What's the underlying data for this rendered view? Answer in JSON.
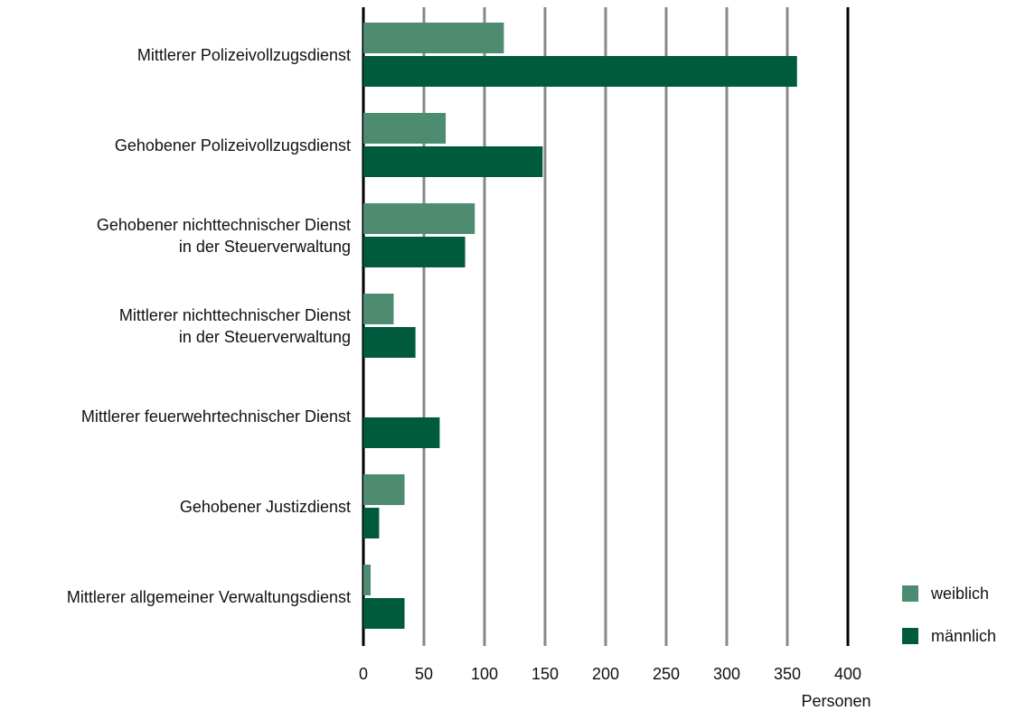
{
  "chart_data": {
    "type": "barh",
    "categories": [
      "Mittlerer Polizeivollzugsdienst",
      "Gehobener Polizeivollzugsdienst",
      "Gehobener nichttechnischer Dienst\nin der Steuerverwaltung",
      "Mittlerer nichttechnischer Dienst\nin der Steuerverwaltung",
      "Mittlerer feuerwehrtechnischer Dienst",
      "Gehobener Justizdienst",
      "Mittlerer allgemeiner Verwaltungsdienst"
    ],
    "series": [
      {
        "name": "weiblich",
        "color": "#4e8c72",
        "values": [
          116,
          68,
          92,
          25,
          0,
          34,
          6
        ]
      },
      {
        "name": "männlich",
        "color": "#005a3c",
        "values": [
          358,
          148,
          84,
          43,
          63,
          13,
          34
        ]
      }
    ],
    "xlabel": "Personen",
    "xlim": [
      0,
      400
    ],
    "xticks": [
      0,
      50,
      100,
      150,
      200,
      250,
      300,
      350,
      400
    ],
    "grid": true,
    "legend": "lower right"
  }
}
